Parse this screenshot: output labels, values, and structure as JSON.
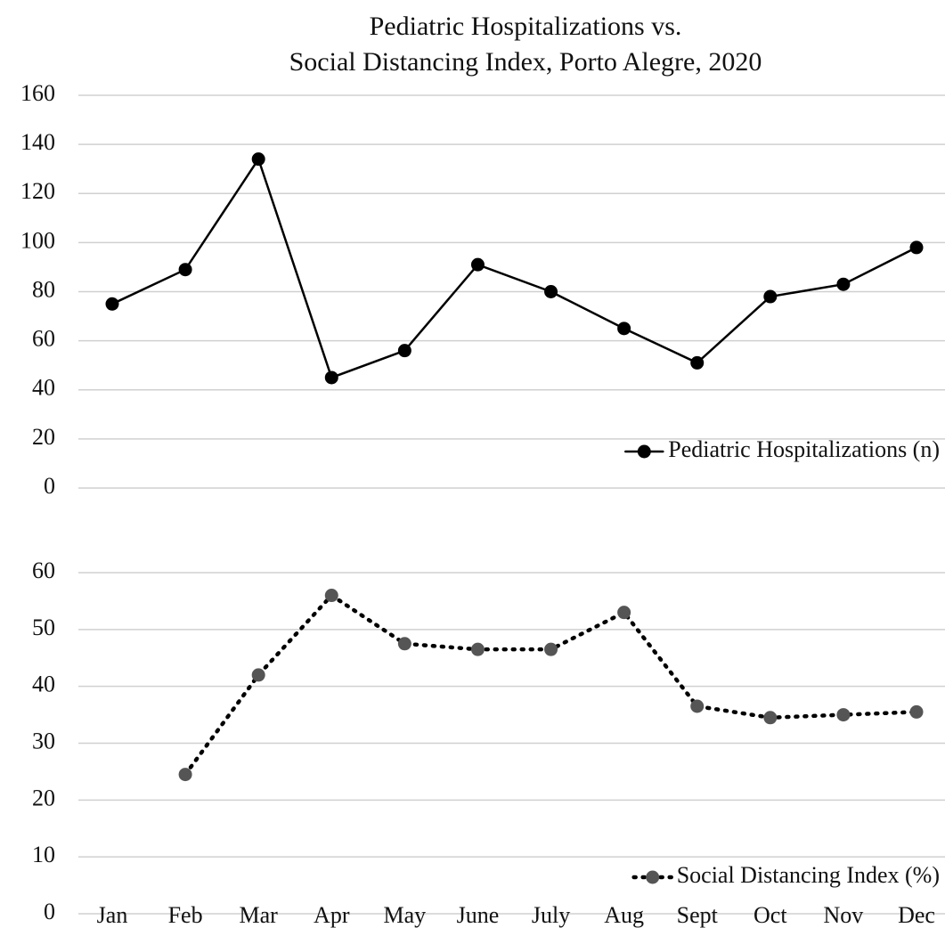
{
  "chart_data": [
    {
      "type": "line",
      "title": [
        "Pediatric Hospitalizations vs.",
        "Social Distancing Index, Porto Alegre, 2020"
      ],
      "ylim": [
        0,
        160
      ],
      "yticks": [
        0,
        20,
        40,
        60,
        80,
        100,
        120,
        140,
        160
      ],
      "grid": true,
      "legend": "lower right",
      "series": [
        {
          "name": "Pediatric Hospitalizations (n)",
          "color": "#000000",
          "line_style": "solid",
          "values": [
            75,
            89,
            134,
            45,
            56,
            91,
            80,
            65,
            51,
            78,
            83,
            98
          ]
        }
      ]
    },
    {
      "type": "line",
      "categories": [
        "Jan",
        "Feb",
        "Mar",
        "Apr",
        "May",
        "June",
        "July",
        "Aug",
        "Sept",
        "Oct",
        "Nov",
        "Dec"
      ],
      "ylim": [
        0,
        60
      ],
      "yticks": [
        0,
        10,
        20,
        30,
        40,
        50,
        60
      ],
      "grid": true,
      "legend": "lower right",
      "series": [
        {
          "name": "Social Distancing Index (%)",
          "color": "#555555",
          "line_style": "dotted",
          "values": [
            null,
            24.5,
            42,
            56,
            47.5,
            46.5,
            46.5,
            53,
            36.5,
            34.5,
            35,
            35.5
          ]
        }
      ]
    }
  ]
}
